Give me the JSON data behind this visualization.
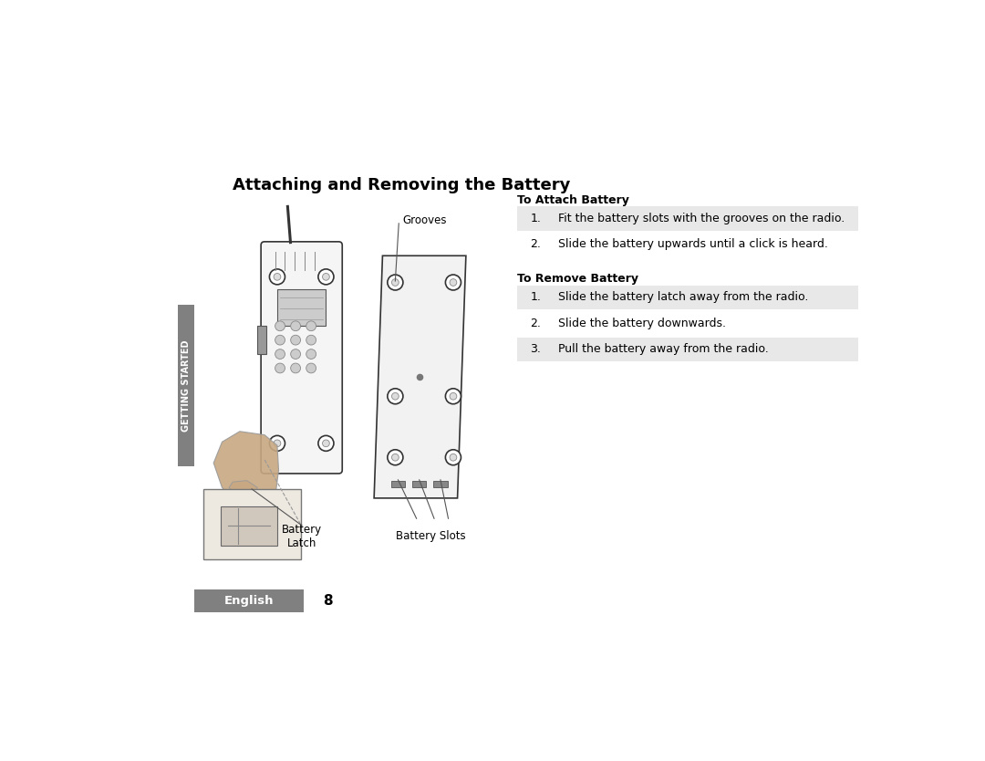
{
  "bg_color": "#ffffff",
  "page_title": "Attaching and Removing the Battery",
  "title_fontsize": 13,
  "left_tab_text": "GETTING STARTED",
  "left_tab_color": "#808080",
  "left_tab_text_color": "#ffffff",
  "footer_tab_text": "English",
  "footer_tab_color": "#808080",
  "footer_tab_text_color": "#ffffff",
  "footer_page_num": "8",
  "section1_heading": "To Attach Battery",
  "section1_steps": [
    {
      "num": "1.",
      "text": "Fit the battery slots with the grooves on the radio.",
      "shaded": true
    },
    {
      "num": "2.",
      "text": "Slide the battery upwards until a click is heard.",
      "shaded": false
    }
  ],
  "section2_heading": "To Remove Battery",
  "section2_steps": [
    {
      "num": "1.",
      "text": "Slide the battery latch away from the radio.",
      "shaded": true
    },
    {
      "num": "2.",
      "text": "Slide the battery downwards.",
      "shaded": false
    },
    {
      "num": "3.",
      "text": "Pull the battery away from the radio.",
      "shaded": true
    }
  ],
  "callout_grooves": "Grooves",
  "callout_battery_latch": "Battery\nLatch",
  "callout_battery_slots": "Battery Slots",
  "shaded_row_color": "#e8e8e8",
  "step_fontsize": 9,
  "section_heading_fontsize": 9
}
